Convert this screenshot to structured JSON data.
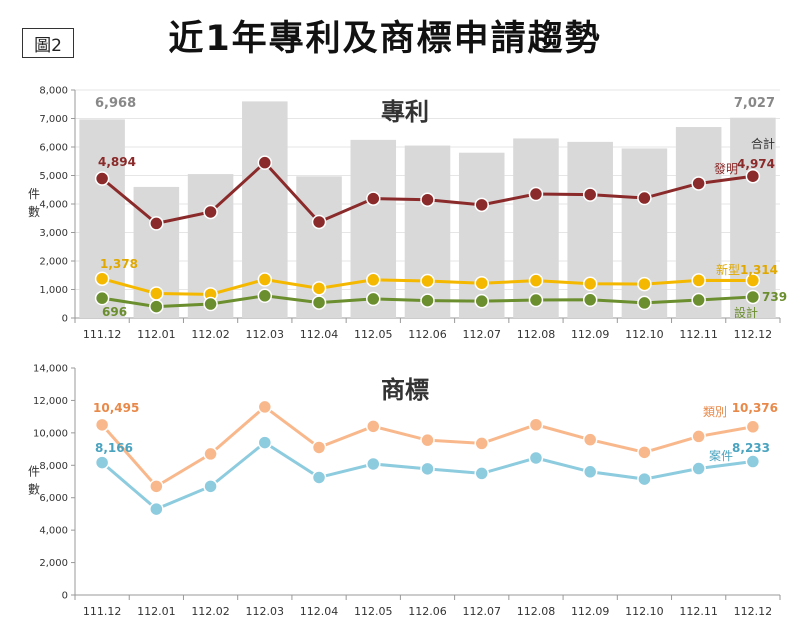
{
  "header": {
    "figure_tag": "圖2",
    "title": "近1年專利及商標申請趨勢"
  },
  "chart_data": [
    {
      "type": "bar+line",
      "title": "專利",
      "ylabel": "件數",
      "ylim": [
        0,
        8000
      ],
      "yticks": [
        "0",
        "1,000",
        "2,000",
        "3,000",
        "4,000",
        "5,000",
        "6,000",
        "7,000",
        "8,000"
      ],
      "grid": true,
      "categories": [
        "111.12",
        "112.01",
        "112.02",
        "112.03",
        "112.04",
        "112.05",
        "112.06",
        "112.07",
        "112.08",
        "112.09",
        "112.10",
        "112.11",
        "112.12"
      ],
      "bars": {
        "name": "合計",
        "color": "#d9d9d9",
        "values": [
          6968,
          4600,
          5050,
          7600,
          4970,
          6250,
          6050,
          5800,
          6300,
          6180,
          5950,
          6700,
          7027
        ]
      },
      "series": [
        {
          "name": "發明",
          "color": "#8b2a2a",
          "values": [
            4894,
            3320,
            3720,
            5450,
            3370,
            4190,
            4150,
            3970,
            4350,
            4330,
            4210,
            4720,
            4974
          ]
        },
        {
          "name": "新型",
          "color": "#f5b800",
          "values": [
            1378,
            860,
            830,
            1350,
            1040,
            1340,
            1300,
            1220,
            1310,
            1200,
            1190,
            1320,
            1314
          ]
        },
        {
          "name": "設計",
          "color": "#6b8e2e",
          "values": [
            696,
            400,
            490,
            780,
            540,
            670,
            610,
            590,
            630,
            640,
            530,
            630,
            739
          ]
        }
      ],
      "data_labels": {
        "bar_first": "6,968",
        "bar_last": "7,027",
        "inv_first": "4,894",
        "inv_last": "4,974",
        "util_first": "1,378",
        "util_last": "1,314",
        "des_first": "696",
        "des_last": "739"
      }
    },
    {
      "type": "line",
      "title": "商標",
      "ylabel": "件數",
      "ylim": [
        0,
        14000
      ],
      "yticks": [
        "0",
        "2,000",
        "4,000",
        "6,000",
        "8,000",
        "10,000",
        "12,000",
        "14,000"
      ],
      "grid": false,
      "categories": [
        "111.12",
        "112.01",
        "112.02",
        "112.03",
        "112.04",
        "112.05",
        "112.06",
        "112.07",
        "112.08",
        "112.09",
        "112.10",
        "112.11",
        "112.12"
      ],
      "series": [
        {
          "name": "類別",
          "color": "#f9b88c",
          "values": [
            10495,
            6700,
            8700,
            11600,
            9100,
            10400,
            9550,
            9350,
            10500,
            9580,
            8800,
            9780,
            10376
          ]
        },
        {
          "name": "案件",
          "color": "#8dcbdf",
          "values": [
            8166,
            5300,
            6700,
            9400,
            7250,
            8080,
            7780,
            7500,
            8450,
            7600,
            7150,
            7800,
            8233
          ]
        }
      ],
      "data_labels": {
        "cls_first": "10,495",
        "cls_last": "10,376",
        "case_first": "8,166",
        "case_last": "8,233"
      }
    }
  ]
}
